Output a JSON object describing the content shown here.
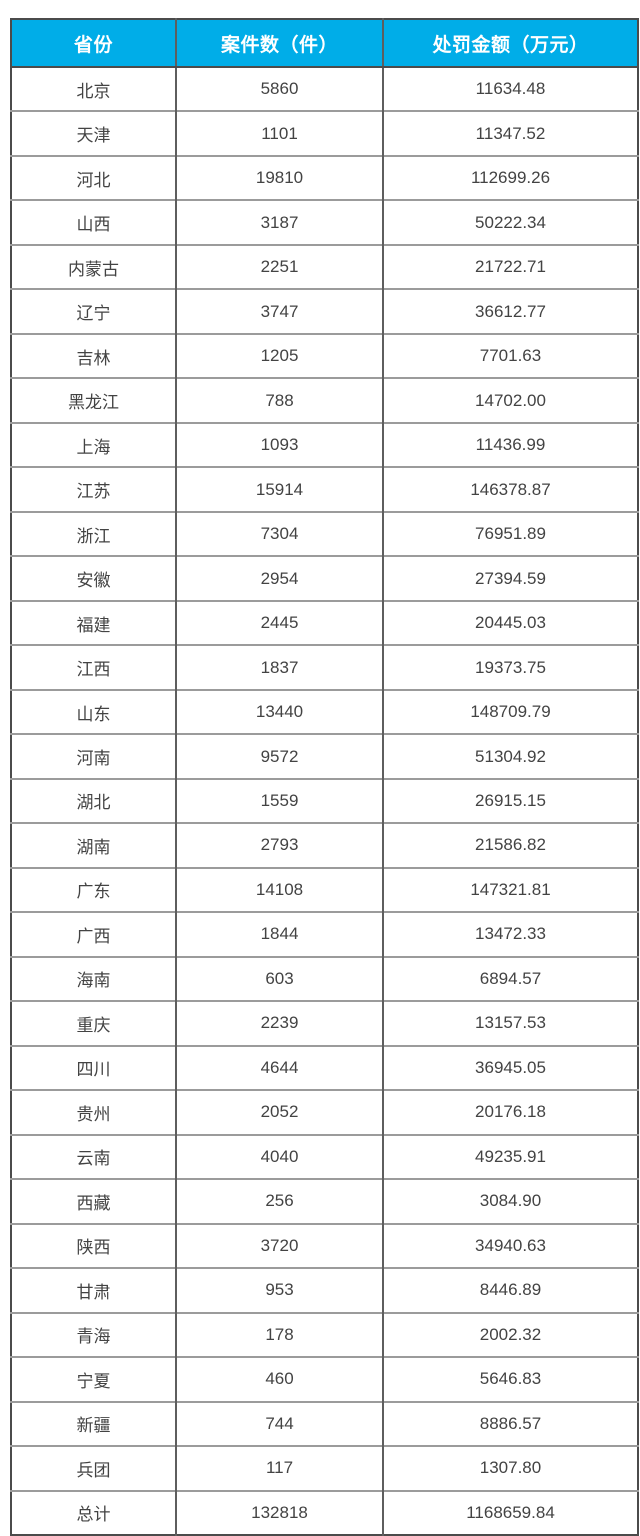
{
  "colors": {
    "header_bg": "#00ade8",
    "header_text": "#ffffff",
    "body_text": "#434343",
    "outer_border": "#4b4b4b",
    "vertical_border": "#5e5e5e",
    "horizontal_border": "#9b9b9b",
    "row_bg": "#ffffff"
  },
  "chart_data": {
    "type": "table",
    "columns": [
      "省份",
      "案件数（件）",
      "处罚金额（万元）"
    ],
    "rows": [
      [
        "北京",
        "5860",
        "11634.48"
      ],
      [
        "天津",
        "1101",
        "11347.52"
      ],
      [
        "河北",
        "19810",
        "112699.26"
      ],
      [
        "山西",
        "3187",
        "50222.34"
      ],
      [
        "内蒙古",
        "2251",
        "21722.71"
      ],
      [
        "辽宁",
        "3747",
        "36612.77"
      ],
      [
        "吉林",
        "1205",
        "7701.63"
      ],
      [
        "黑龙江",
        "788",
        "14702.00"
      ],
      [
        "上海",
        "1093",
        "11436.99"
      ],
      [
        "江苏",
        "15914",
        "146378.87"
      ],
      [
        "浙江",
        "7304",
        "76951.89"
      ],
      [
        "安徽",
        "2954",
        "27394.59"
      ],
      [
        "福建",
        "2445",
        "20445.03"
      ],
      [
        "江西",
        "1837",
        "19373.75"
      ],
      [
        "山东",
        "13440",
        "148709.79"
      ],
      [
        "河南",
        "9572",
        "51304.92"
      ],
      [
        "湖北",
        "1559",
        "26915.15"
      ],
      [
        "湖南",
        "2793",
        "21586.82"
      ],
      [
        "广东",
        "14108",
        "147321.81"
      ],
      [
        "广西",
        "1844",
        "13472.33"
      ],
      [
        "海南",
        "603",
        "6894.57"
      ],
      [
        "重庆",
        "2239",
        "13157.53"
      ],
      [
        "四川",
        "4644",
        "36945.05"
      ],
      [
        "贵州",
        "2052",
        "20176.18"
      ],
      [
        "云南",
        "4040",
        "49235.91"
      ],
      [
        "西藏",
        "256",
        "3084.90"
      ],
      [
        "陕西",
        "3720",
        "34940.63"
      ],
      [
        "甘肃",
        "953",
        "8446.89"
      ],
      [
        "青海",
        "178",
        "2002.32"
      ],
      [
        "宁夏",
        "460",
        "5646.83"
      ],
      [
        "新疆",
        "744",
        "8886.57"
      ],
      [
        "兵团",
        "117",
        "1307.80"
      ]
    ],
    "total": [
      "总计",
      "132818",
      "1168659.84"
    ]
  }
}
